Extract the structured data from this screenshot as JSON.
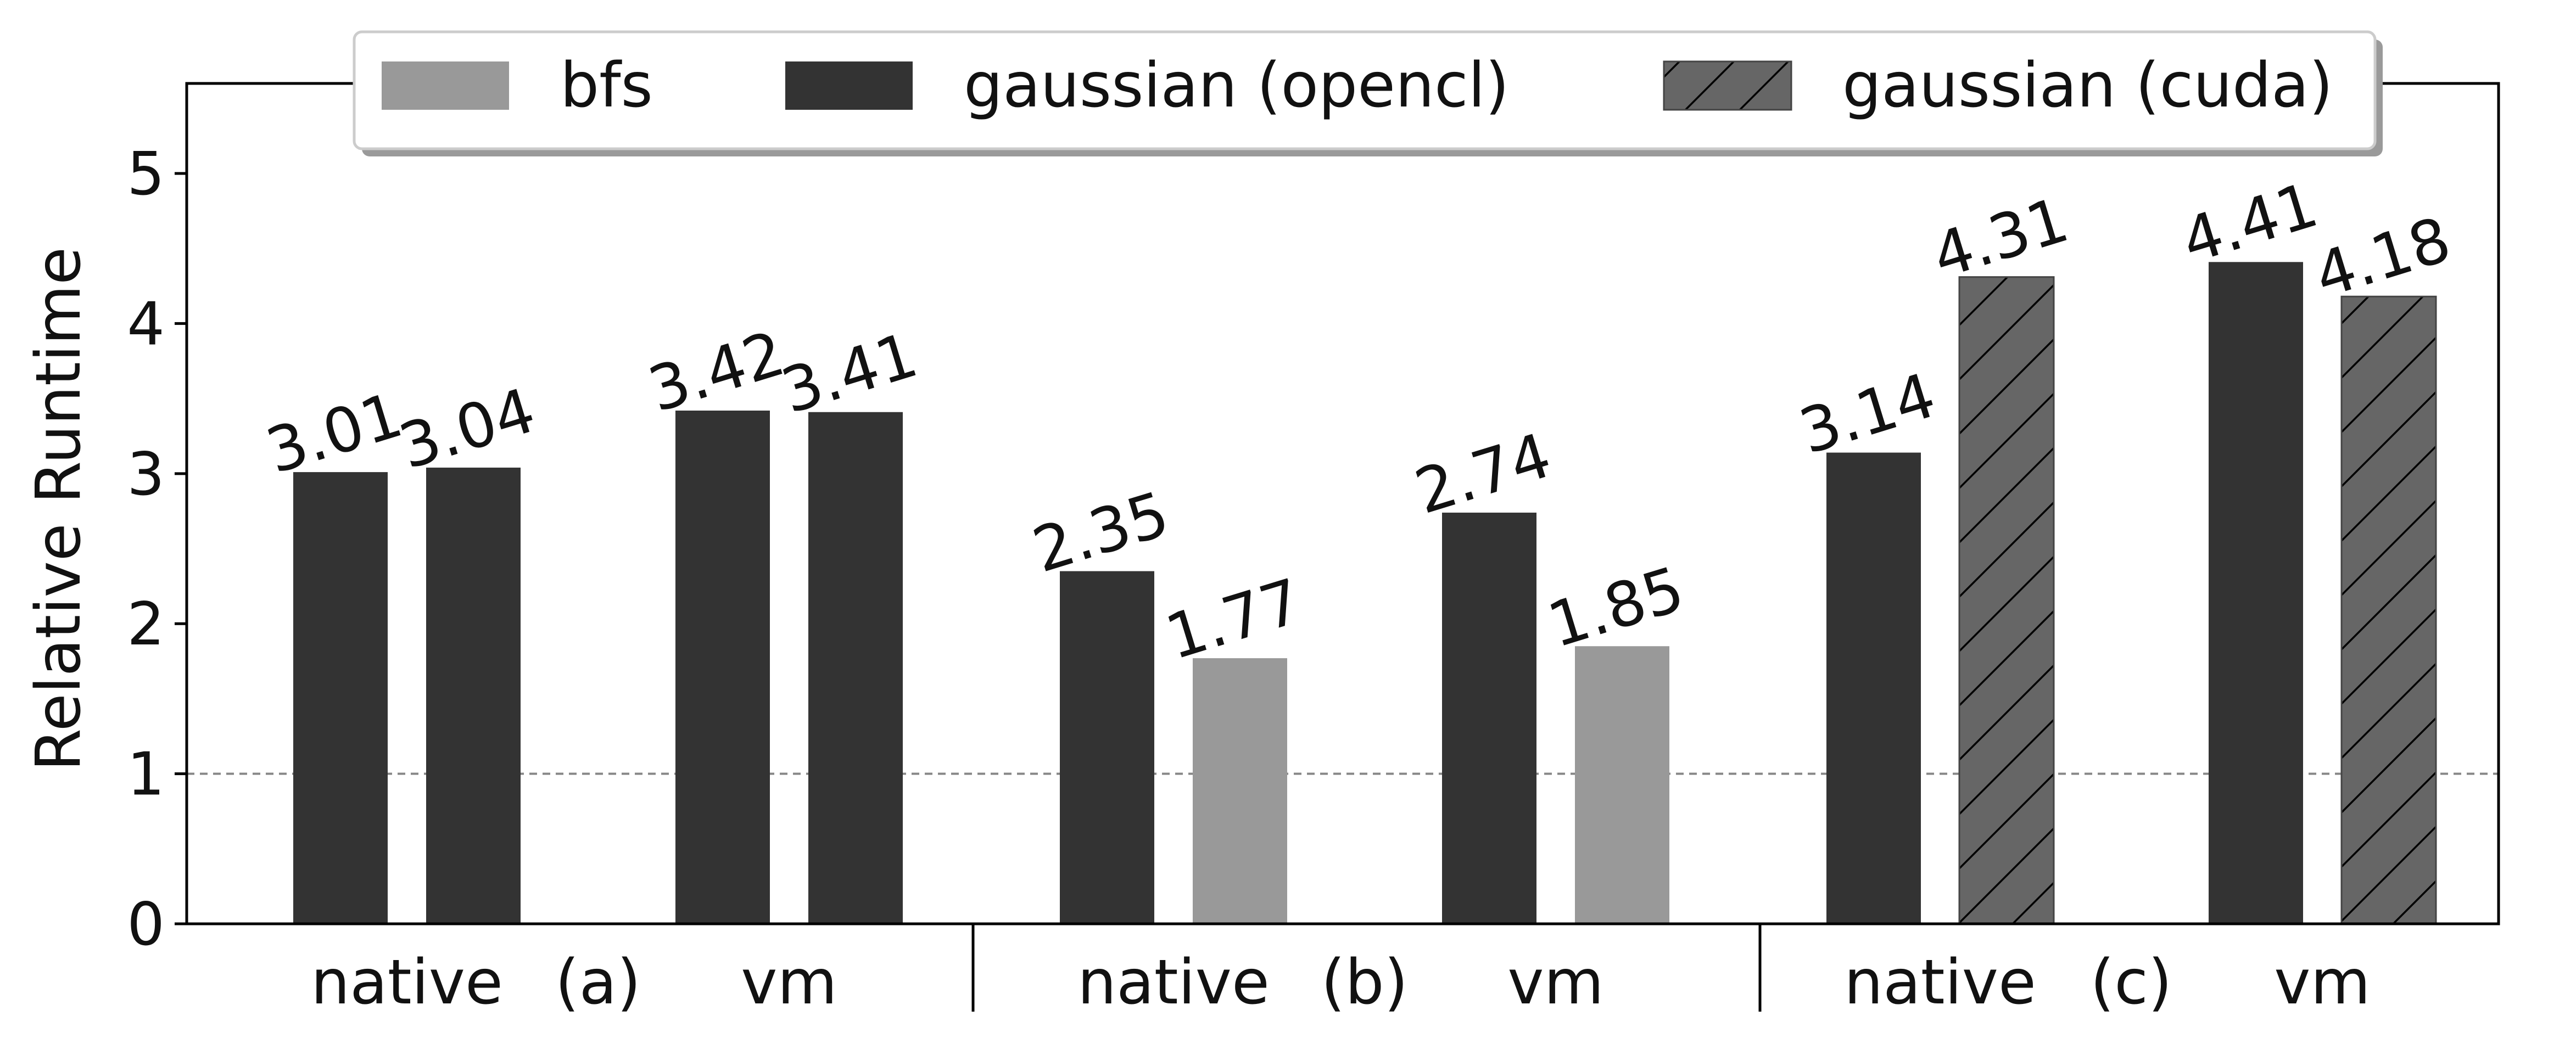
{
  "chart_data": {
    "type": "bar",
    "ylabel": "Relative Runtime",
    "ylim": [
      0,
      5.6
    ],
    "yticks": [
      0,
      1,
      2,
      3,
      4,
      5
    ],
    "reference_line": 1,
    "grid": false,
    "legend_placement": "top-center",
    "legend": [
      {
        "name": "bfs",
        "color": "#999999",
        "hatch": false
      },
      {
        "name": "gaussian (opencl)",
        "color": "#333333",
        "hatch": false
      },
      {
        "name": "gaussian (cuda)",
        "color": "#666666",
        "hatch": true
      }
    ],
    "panels": [
      {
        "panel_label": "(a)",
        "groups": [
          {
            "label": "native",
            "bars": [
              {
                "series": "gaussian (opencl)",
                "value": 3.01,
                "label": "3.01"
              },
              {
                "series": "gaussian (opencl)",
                "value": 3.04,
                "label": "3.04"
              }
            ]
          },
          {
            "label": "vm",
            "bars": [
              {
                "series": "gaussian (opencl)",
                "value": 3.42,
                "label": "3.42"
              },
              {
                "series": "gaussian (opencl)",
                "value": 3.41,
                "label": "3.41"
              }
            ]
          }
        ]
      },
      {
        "panel_label": "(b)",
        "groups": [
          {
            "label": "native",
            "bars": [
              {
                "series": "gaussian (opencl)",
                "value": 2.35,
                "label": "2.35"
              },
              {
                "series": "bfs",
                "value": 1.77,
                "label": "1.77"
              }
            ]
          },
          {
            "label": "vm",
            "bars": [
              {
                "series": "gaussian (opencl)",
                "value": 2.74,
                "label": "2.74"
              },
              {
                "series": "bfs",
                "value": 1.85,
                "label": "1.85"
              }
            ]
          }
        ]
      },
      {
        "panel_label": "(c)",
        "groups": [
          {
            "label": "native",
            "bars": [
              {
                "series": "gaussian (opencl)",
                "value": 3.14,
                "label": "3.14"
              },
              {
                "series": "gaussian (cuda)",
                "value": 4.31,
                "label": "4.31"
              }
            ]
          },
          {
            "label": "vm",
            "bars": [
              {
                "series": "gaussian (opencl)",
                "value": 4.41,
                "label": "4.41"
              },
              {
                "series": "gaussian (cuda)",
                "value": 4.18,
                "label": "4.18"
              }
            ]
          }
        ]
      }
    ]
  }
}
